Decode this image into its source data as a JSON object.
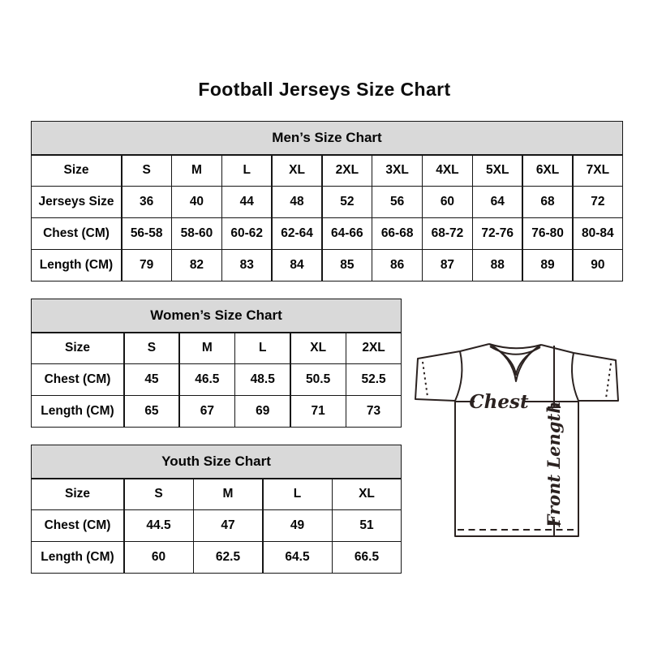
{
  "title": "Football Jerseys Size Chart",
  "colors": {
    "header_bg": "#d9d9d9",
    "table_border": "#161616",
    "text": "#000000",
    "sketch_line": "#2b2220"
  },
  "chart_data": [
    {
      "type": "table",
      "title": "Men’s Size Chart",
      "columns": [
        "Size",
        "S",
        "M",
        "L",
        "XL",
        "2XL",
        "3XL",
        "4XL",
        "5XL",
        "6XL",
        "7XL"
      ],
      "rows": [
        [
          "Jerseys Size",
          "36",
          "40",
          "44",
          "48",
          "52",
          "56",
          "60",
          "64",
          "68",
          "72"
        ],
        [
          "Chest (CM)",
          "56-58",
          "58-60",
          "60-62",
          "62-64",
          "64-66",
          "66-68",
          "68-72",
          "72-76",
          "76-80",
          "80-84"
        ],
        [
          "Length (CM)",
          "79",
          "82",
          "83",
          "84",
          "85",
          "86",
          "87",
          "88",
          "89",
          "90"
        ]
      ]
    },
    {
      "type": "table",
      "title": "Women’s Size Chart",
      "columns": [
        "Size",
        "S",
        "M",
        "L",
        "XL",
        "2XL"
      ],
      "rows": [
        [
          "Chest (CM)",
          "45",
          "46.5",
          "48.5",
          "50.5",
          "52.5"
        ],
        [
          "Length (CM)",
          "65",
          "67",
          "69",
          "71",
          "73"
        ]
      ]
    },
    {
      "type": "table",
      "title": "Youth Size Chart",
      "columns": [
        "Size",
        "S",
        "M",
        "L",
        "XL"
      ],
      "rows": [
        [
          "Chest (CM)",
          "44.5",
          "47",
          "49",
          "51"
        ],
        [
          "Length (CM)",
          "60",
          "62.5",
          "64.5",
          "66.5"
        ]
      ]
    }
  ],
  "diagram": {
    "chest_label": "Chest",
    "front_length_label": "Front Length"
  }
}
